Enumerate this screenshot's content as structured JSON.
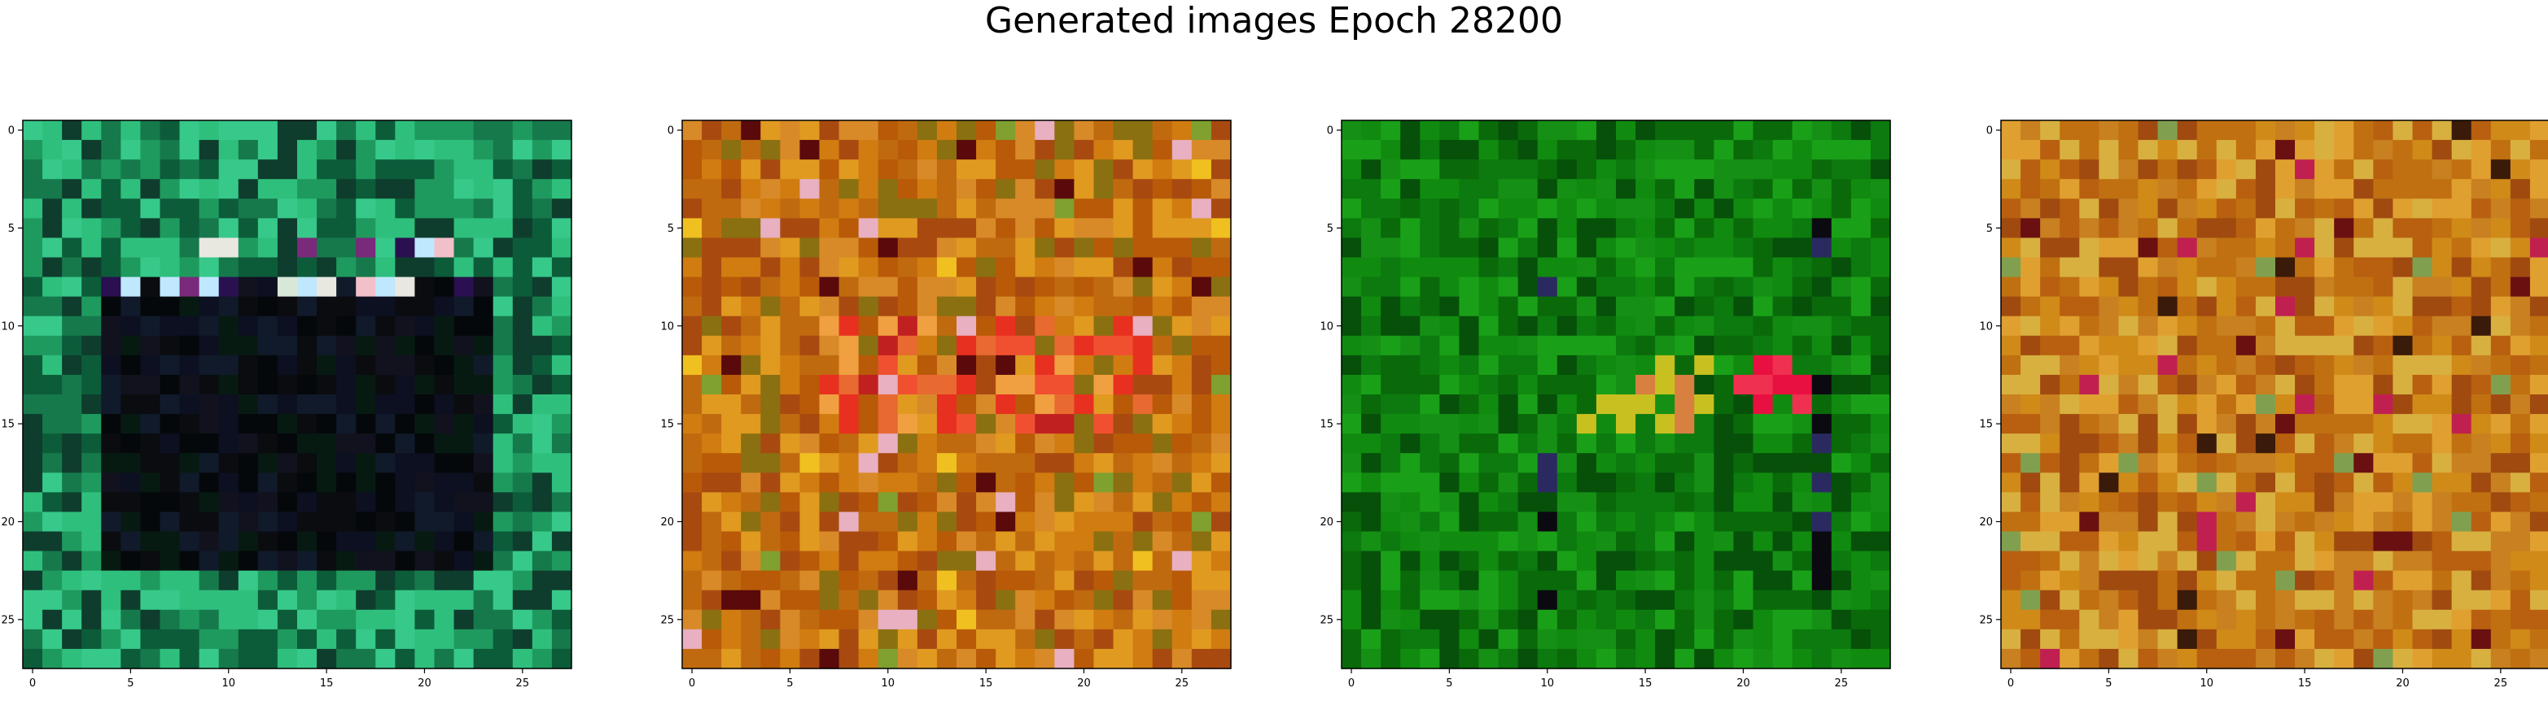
{
  "figure": {
    "title": "Generated images Epoch 28200"
  },
  "chart_data": [
    {
      "type": "heatmap",
      "panel": 1,
      "grid_size": [
        28,
        28
      ],
      "xticks": [
        0,
        5,
        10,
        15,
        20,
        25
      ],
      "yticks": [
        0,
        5,
        10,
        15,
        20,
        25
      ],
      "xlim": [
        -0.5,
        27.5
      ],
      "ylim": [
        27.5,
        -0.5
      ],
      "palette": [
        "#1f9a5e",
        "#0c5c3a",
        "#2fbf7d",
        "#16794c",
        "#37c98a",
        "#0e3d2d"
      ],
      "center_palette": [
        "#0a0c10",
        "#0d1020",
        "#071a12",
        "#12121f",
        "#05080a",
        "#101a2a"
      ],
      "accent_palette": [
        "#d8e8d8",
        "#f2c0c8",
        "#2a1050",
        "#e8e8e0",
        "#7a2a7a",
        "#bfe8ff"
      ],
      "description_key": "teal frame with dark center and light accent pixels"
    },
    {
      "type": "heatmap",
      "panel": 2,
      "grid_size": [
        28,
        28
      ],
      "xticks": [
        0,
        5,
        10,
        15,
        20,
        25
      ],
      "yticks": [
        0,
        5,
        10,
        15,
        20,
        25
      ],
      "xlim": [
        -0.5,
        27.5
      ],
      "ylim": [
        27.5,
        -0.5
      ],
      "palette": [
        "#d07c10",
        "#b85a08",
        "#e09a20",
        "#c06a10",
        "#a84a10",
        "#d88a28",
        "#8a7010"
      ],
      "center_palette": [
        "#e83020",
        "#f05030",
        "#f0a040",
        "#e86a30",
        "#c02020"
      ],
      "accent_palette": [
        "#5a0a0a",
        "#e8b0c0",
        "#80a030",
        "#f0c020"
      ],
      "description_key": "orange texture with red center"
    },
    {
      "type": "heatmap",
      "panel": 3,
      "grid_size": [
        28,
        28
      ],
      "xticks": [
        0,
        5,
        10,
        15,
        20,
        25
      ],
      "yticks": [
        0,
        5,
        10,
        15,
        20,
        25
      ],
      "xlim": [
        -0.5,
        27.5
      ],
      "ylim": [
        27.5,
        -0.5
      ],
      "palette": [
        "#118a10",
        "#0a6a0a",
        "#1aa018",
        "#0c7a0e",
        "#06500a",
        "#159015"
      ],
      "center_palette": [
        "#118a10",
        "#1aa018"
      ],
      "accent_palette": [
        "#e81040",
        "#f03050",
        "#d88040",
        "#c8c020",
        "#0a0a10",
        "#2a2a60"
      ],
      "description_key": "green texture with red and orange accents"
    },
    {
      "type": "heatmap",
      "panel": 4,
      "grid_size": [
        28,
        28
      ],
      "xticks": [
        0,
        5,
        10,
        15,
        20,
        25
      ],
      "yticks": [
        0,
        5,
        10,
        15,
        20,
        25
      ],
      "xlim": [
        -0.5,
        27.5
      ],
      "ylim": [
        27.5,
        -0.5
      ],
      "palette": [
        "#d08a18",
        "#c07010",
        "#e0a030",
        "#b86010",
        "#a04a10",
        "#d8b040",
        "#c88020"
      ],
      "center_palette": [
        "#d8b040",
        "#c07010"
      ],
      "accent_palette": [
        "#6a1010",
        "#c02050",
        "#80a050",
        "#3a1a08"
      ],
      "description_key": "orange-yellow texture"
    }
  ]
}
